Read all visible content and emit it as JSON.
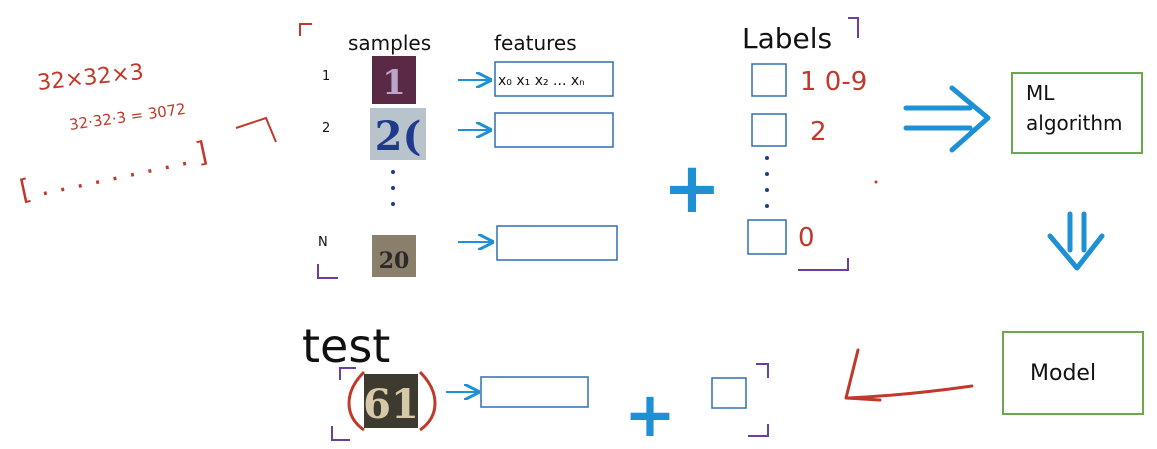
{
  "headers": {
    "samples": "samples",
    "features": "features",
    "labels": "Labels"
  },
  "rows": [
    {
      "index": "1",
      "digit_text": "1",
      "features_text": "x₀ x₁ x₂ ... xₙ",
      "label_note": "1 0-9"
    },
    {
      "index": "2",
      "digit_text": "2(",
      "features_text": "",
      "label_note": "2"
    },
    {
      "index": "N",
      "digit_text": "20",
      "features_text": "",
      "label_note": "0"
    }
  ],
  "red_notes": {
    "dims": "32×32×3",
    "product": "32·32·3 = 3072",
    "vector": "[ . . . . . . . . . ]"
  },
  "plus_sign": "+",
  "ml_box_line1": "ML",
  "ml_box_line2": "algorithm",
  "model_label": "Model",
  "test_label": "test",
  "test_digit_text": "61",
  "colors": {
    "red_ink": "#c0392b",
    "blue_ink": "#1e90d6",
    "purple_ink": "#6a3fa0",
    "green_box": "#6aa84f",
    "box_blue": "#2f6fb3"
  }
}
